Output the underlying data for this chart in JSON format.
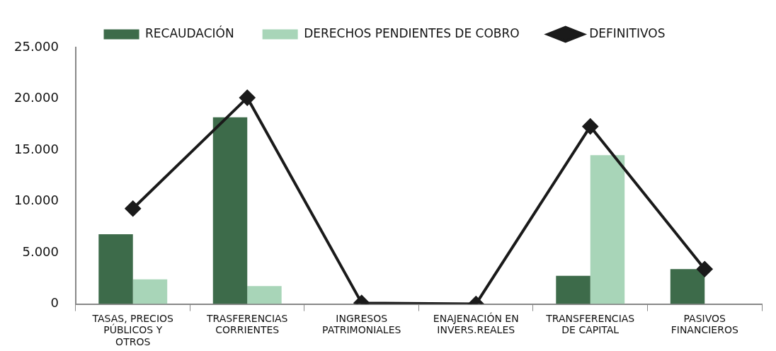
{
  "chart_data": {
    "type": "bar",
    "categories": [
      "TASAS, PRECIOS PÚBLICOS Y OTROS",
      "TRASFERENCIAS CORRIENTES",
      "INGRESOS PATRIMONIALES",
      "ENAJENACIÓN EN INVERS.REALES",
      "TRANSFERENCIAS DE CAPITAL",
      "PASIVOS FINANCIEROS"
    ],
    "series": [
      {
        "name": "RECAUDACIÓN",
        "color": "#3d6b4a",
        "values": [
          6800,
          18200,
          0,
          0,
          2750,
          3400
        ]
      },
      {
        "name": "DERECHOS PENDIENTES DE COBRO",
        "color": "#a8d5b8",
        "values": [
          2400,
          1750,
          0,
          0,
          14500,
          0
        ]
      },
      {
        "name": "DEFINITIVOS",
        "type": "line",
        "color": "#1a1a1a",
        "marker": "diamond",
        "values": [
          9300,
          20100,
          100,
          0,
          17300,
          3400
        ]
      }
    ],
    "ylim": [
      0,
      25000
    ],
    "yticks": [
      {
        "value": 0,
        "label": "0"
      },
      {
        "value": 5000,
        "label": "5.000"
      },
      {
        "value": 10000,
        "label": "10.000"
      },
      {
        "value": 15000,
        "label": "15.000"
      },
      {
        "value": 20000,
        "label": "20.000"
      },
      {
        "value": 25000,
        "label": "25.000"
      }
    ],
    "grid": false,
    "legend": "top"
  }
}
